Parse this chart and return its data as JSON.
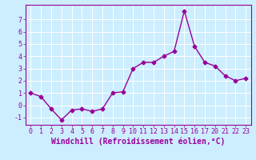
{
  "x": [
    0,
    1,
    2,
    3,
    4,
    5,
    6,
    7,
    8,
    9,
    10,
    11,
    12,
    13,
    14,
    15,
    16,
    17,
    20,
    21,
    22,
    23
  ],
  "y": [
    1.0,
    0.7,
    -0.3,
    -1.2,
    -0.4,
    -0.3,
    -0.5,
    -0.3,
    1.0,
    1.1,
    3.0,
    3.5,
    3.5,
    4.0,
    4.4,
    7.7,
    4.8,
    3.5,
    3.2,
    2.4,
    2.0,
    2.2
  ],
  "line_color": "#990099",
  "marker": "D",
  "marker_size": 2.5,
  "linewidth": 1.0,
  "xlabel": "Windchill (Refroidissement éolien,°C)",
  "xlabel_fontsize": 7,
  "xlim": [
    -0.5,
    23.5
  ],
  "ylim": [
    -1.6,
    8.2
  ],
  "yticks": [
    -1,
    0,
    1,
    2,
    3,
    4,
    5,
    6,
    7
  ],
  "xticks": [
    0,
    1,
    2,
    3,
    4,
    5,
    6,
    7,
    8,
    9,
    10,
    11,
    12,
    13,
    14,
    15,
    16,
    17,
    20,
    21,
    22,
    23
  ],
  "background_color": "#cceeff",
  "grid_color": "#ffffff",
  "tick_color": "#990099",
  "tick_fontsize": 6,
  "spine_color": "#990099"
}
